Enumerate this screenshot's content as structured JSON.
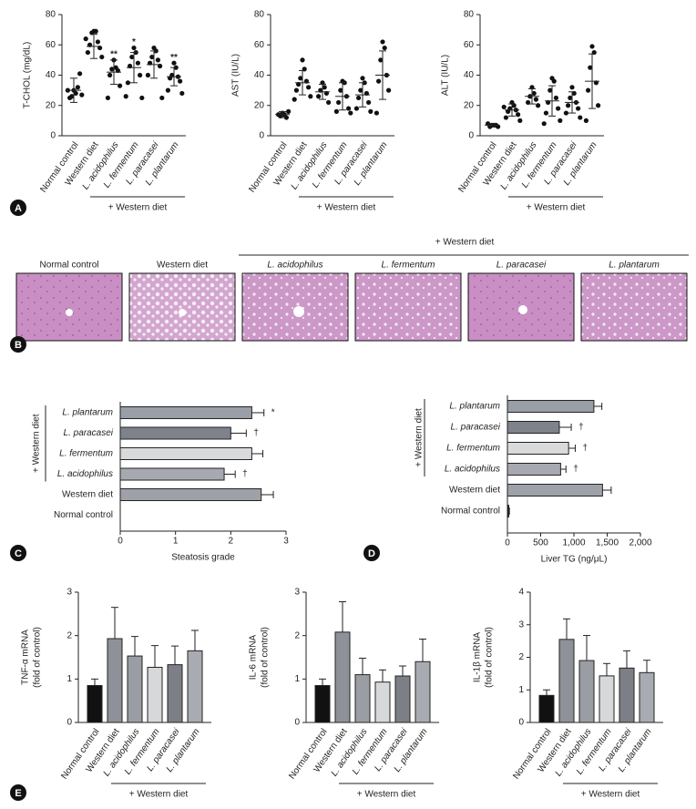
{
  "panels": [
    "A",
    "B",
    "C",
    "D",
    "E"
  ],
  "histology": {
    "group_label": "+ Western diet",
    "labels": [
      "Normal control",
      "Western diet",
      "L. acidophilus",
      "L. fermentum",
      "L. paracasei",
      "L. plantarum"
    ]
  },
  "chart_data": [
    {
      "type": "dotplot",
      "ylabel": "T-CHOL (mg/dL)",
      "group_label": "+ Western diet",
      "categories": [
        "Normal control",
        "Western diet",
        "L. acidophilus",
        "L. fermentum",
        "L. paracasei",
        "L. plantarum"
      ],
      "ylim": [
        0,
        80
      ],
      "yticks": [
        0,
        20,
        40,
        60,
        80
      ],
      "means": [
        30,
        59,
        42,
        45,
        47,
        39
      ],
      "sd": [
        8,
        8,
        8,
        10,
        9,
        6
      ],
      "points": [
        [
          30,
          28,
          26,
          32,
          25,
          41,
          30,
          27
        ],
        [
          69,
          69,
          68,
          62,
          60,
          58,
          55,
          52,
          64
        ],
        [
          50,
          45,
          44,
          43,
          40,
          33,
          25
        ],
        [
          58,
          55,
          52,
          48,
          46,
          40,
          35,
          25,
          26
        ],
        [
          58,
          56,
          52,
          50,
          48,
          46,
          40,
          25
        ],
        [
          48,
          45,
          40,
          39,
          38,
          36,
          30,
          28
        ]
      ],
      "significance": [
        null,
        null,
        "**",
        "*",
        null,
        "**"
      ]
    },
    {
      "type": "dotplot",
      "ylabel": "AST (IU/L)",
      "group_label": "+ Western diet",
      "categories": [
        "Normal control",
        "Western diet",
        "L. acidophilus",
        "L. fermentum",
        "L. paracasei",
        "L. plantarum"
      ],
      "ylim": [
        0,
        80
      ],
      "yticks": [
        0,
        20,
        40,
        60,
        80
      ],
      "means": [
        14,
        35,
        29,
        26,
        27,
        40
      ],
      "sd": [
        2,
        8,
        5,
        9,
        8,
        16
      ],
      "points": [
        [
          15,
          14,
          13,
          12,
          14,
          16
        ],
        [
          50,
          44,
          38,
          36,
          34,
          32,
          30,
          26,
          24
        ],
        [
          35,
          32,
          30,
          28,
          26,
          22
        ],
        [
          36,
          35,
          30,
          26,
          22,
          18,
          16,
          15
        ],
        [
          38,
          35,
          30,
          28,
          25,
          22,
          18,
          16
        ],
        [
          62,
          58,
          50,
          40,
          36,
          30,
          15
        ]
      ],
      "significance": [
        null,
        null,
        null,
        null,
        null,
        null
      ]
    },
    {
      "type": "dotplot",
      "ylabel": "ALT (IU/L)",
      "group_label": "+ Western diet",
      "categories": [
        "Normal control",
        "Western diet",
        "L. acidophilus",
        "L. fermentum",
        "L. paracasei",
        "L. plantarum"
      ],
      "ylim": [
        0,
        80
      ],
      "yticks": [
        0,
        20,
        40,
        60,
        80
      ],
      "means": [
        7,
        17,
        26,
        23,
        22,
        36
      ],
      "sd": [
        1,
        4,
        5,
        10,
        7,
        18
      ],
      "points": [
        [
          7,
          7,
          6,
          7,
          8,
          6
        ],
        [
          22,
          20,
          18,
          17,
          16,
          14,
          12,
          10,
          19
        ],
        [
          32,
          28,
          26,
          24,
          22,
          20
        ],
        [
          38,
          36,
          30,
          25,
          22,
          18,
          15,
          10,
          8
        ],
        [
          32,
          28,
          25,
          22,
          20,
          18,
          15,
          12
        ],
        [
          59,
          55,
          45,
          35,
          30,
          20,
          10
        ]
      ],
      "significance": [
        null,
        null,
        null,
        null,
        null,
        null
      ]
    },
    {
      "type": "hbar",
      "xlabel": "Steatosis grade",
      "group_label": "+ Western diet",
      "categories": [
        "L. plantarum",
        "L. paracasei",
        "L. fermentum",
        "L. acidophilus",
        "Western diet",
        "Normal control"
      ],
      "values": [
        2.38,
        2.0,
        2.38,
        1.88,
        2.55,
        0
      ],
      "errors": [
        0.22,
        0.28,
        0.2,
        0.2,
        0.22,
        0
      ],
      "colors": [
        "#9a9ea6",
        "#7e828a",
        "#d8dadc",
        "#a6aab0",
        "#9ea2a8",
        "#222222"
      ],
      "significance": [
        "*",
        "†",
        null,
        "†",
        null,
        null
      ],
      "xlim": [
        0,
        3
      ],
      "xticks": [
        0,
        1,
        2,
        3
      ]
    },
    {
      "type": "hbar",
      "xlabel": "Liver TG (ng/μL)",
      "group_label": "+ Western diet",
      "categories": [
        "L. plantarum",
        "L. paracasei",
        "L. fermentum",
        "L. acidophilus",
        "Western diet",
        "Normal control"
      ],
      "values": [
        1300,
        780,
        920,
        800,
        1430,
        20
      ],
      "errors": [
        120,
        180,
        100,
        80,
        130,
        10
      ],
      "colors": [
        "#9a9ea6",
        "#7e828a",
        "#d8dadc",
        "#a6aab0",
        "#9ea2a8",
        "#222222"
      ],
      "significance": [
        null,
        "†",
        "†",
        "†",
        null,
        null
      ],
      "xlim": [
        0,
        2000
      ],
      "xticks": [
        0,
        500,
        {
          "value": 1000,
          "label": "1,000"
        },
        {
          "value": 1500,
          "label": "1,500"
        },
        {
          "value": 2000,
          "label": "2,000"
        }
      ]
    },
    {
      "type": "bar",
      "ylabel": [
        "TNF-α mRNA",
        "(fold of control)"
      ],
      "group_label": "+ Western diet",
      "categories": [
        "Normal control",
        "Western diet",
        "L. acidophilus",
        "L. fermentum",
        "L. paracasei",
        "L. plantarum"
      ],
      "values": [
        0.85,
        1.93,
        1.53,
        1.27,
        1.33,
        1.65
      ],
      "errors": [
        0.15,
        0.72,
        0.45,
        0.5,
        0.43,
        0.47
      ],
      "colors": [
        "#111111",
        "#8e9298",
        "#9a9ea4",
        "#d6d8da",
        "#7c8086",
        "#a8acb2"
      ],
      "ylim": [
        0,
        3
      ],
      "yticks": [
        0,
        1,
        2,
        3
      ]
    },
    {
      "type": "bar",
      "ylabel": [
        "IL-6 mRNA",
        "(fold of control)"
      ],
      "group_label": "+ Western diet",
      "categories": [
        "Normal control",
        "Western diet",
        "L. acidophilus",
        "L. fermentum",
        "L. paracasei",
        "L. plantarum"
      ],
      "values": [
        0.85,
        2.08,
        1.1,
        0.93,
        1.07,
        1.4
      ],
      "errors": [
        0.15,
        0.7,
        0.38,
        0.28,
        0.23,
        0.52
      ],
      "colors": [
        "#111111",
        "#8e9298",
        "#9a9ea4",
        "#d6d8da",
        "#7c8086",
        "#a8acb2"
      ],
      "ylim": [
        0,
        3
      ],
      "yticks": [
        0,
        1,
        2,
        3
      ]
    },
    {
      "type": "bar",
      "ylabel": [
        "IL-1β mRNA",
        "(fold of control)"
      ],
      "group_label": "+ Western diet",
      "categories": [
        "Normal control",
        "Western diet",
        "L. acidophilus",
        "L. fermentum",
        "L. paracasei",
        "L. plantarum"
      ],
      "values": [
        0.83,
        2.55,
        1.9,
        1.43,
        1.67,
        1.53
      ],
      "errors": [
        0.17,
        0.63,
        0.77,
        0.38,
        0.53,
        0.38
      ],
      "colors": [
        "#111111",
        "#8e9298",
        "#9a9ea4",
        "#d6d8da",
        "#7c8086",
        "#a8acb2"
      ],
      "ylim": [
        0,
        4
      ],
      "yticks": [
        0,
        1,
        2,
        3,
        4
      ]
    }
  ]
}
